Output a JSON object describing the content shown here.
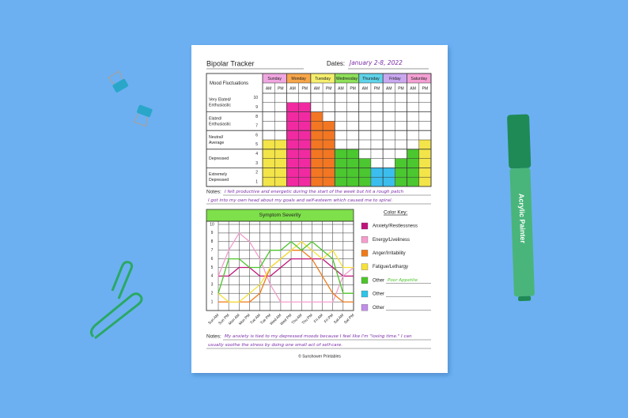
{
  "header": {
    "title": "Bipolar Tracker",
    "dates_label": "Dates:",
    "dates": "January 2-8, 2022"
  },
  "mood_chart": {
    "type": "bar",
    "corner_label": "Mood Fluctuations",
    "days": [
      {
        "name": "Sunday",
        "color": "#f0a6e0"
      },
      {
        "name": "Monday",
        "color": "#f7a64a"
      },
      {
        "name": "Tuesday",
        "color": "#f5ee6e"
      },
      {
        "name": "Wednesday",
        "color": "#8fe05a"
      },
      {
        "name": "Thursday",
        "color": "#5fd3ea"
      },
      {
        "name": "Friday",
        "color": "#c9a8f0"
      },
      {
        "name": "Saturday",
        "color": "#f4a0d4"
      }
    ],
    "slots": [
      "AM",
      "PM"
    ],
    "levels": [
      {
        "label": [
          "Very Elated/",
          "Enthusiastic"
        ],
        "ticks": [
          10,
          9
        ]
      },
      {
        "label": [
          "Elated/",
          "Enthusiastic"
        ],
        "ticks": [
          8,
          7
        ]
      },
      {
        "label": [
          "Neutral/",
          "Average"
        ],
        "ticks": [
          6,
          5
        ]
      },
      {
        "label": [
          "Depressed"
        ],
        "ticks": [
          4,
          3
        ]
      },
      {
        "label": [
          "Extremely",
          "Depressed"
        ],
        "ticks": [
          2,
          1
        ]
      }
    ],
    "ylim": [
      0,
      10
    ],
    "values": [
      5,
      5,
      9,
      9,
      8,
      7,
      4,
      4,
      3,
      2,
      2,
      3,
      4,
      5
    ],
    "colors": [
      "#f2e23a",
      "#f2e23a",
      "#f0189a",
      "#f0189a",
      "#f26a10",
      "#f26a10",
      "#3cc21e",
      "#3cc21e",
      "#3cc21e",
      "#2ab8ec",
      "#2ab8ec",
      "#3cc21e",
      "#3cc21e",
      "#f2e23a"
    ]
  },
  "notes_1": {
    "label": "Notes:",
    "lines": [
      "I felt productive and energetic during the start of the week but hit a rough patch",
      "I got into my own head about my goals and self-esteem which caused me to spiral."
    ]
  },
  "symptom_chart": {
    "type": "line",
    "title": "Symptom Severity",
    "categories": [
      "Sun AM",
      "Sun PM",
      "Mon AM",
      "Mon PM",
      "Tue AM",
      "Tue PM",
      "Wed AM",
      "Wed PM",
      "Thu AM",
      "Thu PM",
      "Fri AM",
      "Fri PM",
      "Sat AM",
      "Sat PM"
    ],
    "ylim": [
      0,
      10
    ],
    "yticks": [
      1,
      2,
      3,
      4,
      5,
      6,
      7,
      8,
      9,
      10
    ],
    "series": [
      {
        "name": "Anxiety/Restlessness",
        "color": "#c0147a",
        "values": [
          4,
          4,
          5,
          5,
          4,
          4,
          5,
          6,
          6,
          6,
          6,
          5,
          4,
          4
        ]
      },
      {
        "name": "Energy/Liveliness",
        "color": "#f59ccc",
        "values": [
          4,
          7,
          9,
          8,
          6,
          3,
          1,
          1,
          1,
          1,
          1,
          1,
          4,
          5
        ]
      },
      {
        "name": "Anger/Irritability",
        "color": "#f07a18",
        "values": [
          1,
          1,
          1,
          1,
          2,
          5,
          6,
          7,
          7,
          6,
          4,
          2,
          1,
          1
        ]
      },
      {
        "name": "Fatigue/Lethargy",
        "color": "#f5e23a",
        "values": [
          2,
          1,
          1,
          2,
          3,
          5,
          6,
          7,
          8,
          7,
          6,
          7,
          5,
          5
        ]
      },
      {
        "name": "Poor Appetite",
        "label": "Other",
        "color": "#4cc42a",
        "values": [
          2,
          6,
          6,
          5,
          5,
          7,
          7,
          8,
          7,
          8,
          7,
          6,
          2,
          2
        ]
      }
    ]
  },
  "color_key": {
    "title": "Color Key:",
    "unused": [
      {
        "label": "Other",
        "color": "#2ec4e8"
      },
      {
        "label": "Other",
        "color": "#c08ee8"
      }
    ]
  },
  "notes_2": {
    "label": "Notes:",
    "lines": [
      "My anxiety is tied to my depressed moods because I feel like I'm \"losing time.\" I can",
      "usually soothe the stress by doing one small act of self-care."
    ]
  },
  "footer": "© Sunshower Printables",
  "marker": {
    "label": "Acrylic Painter"
  }
}
